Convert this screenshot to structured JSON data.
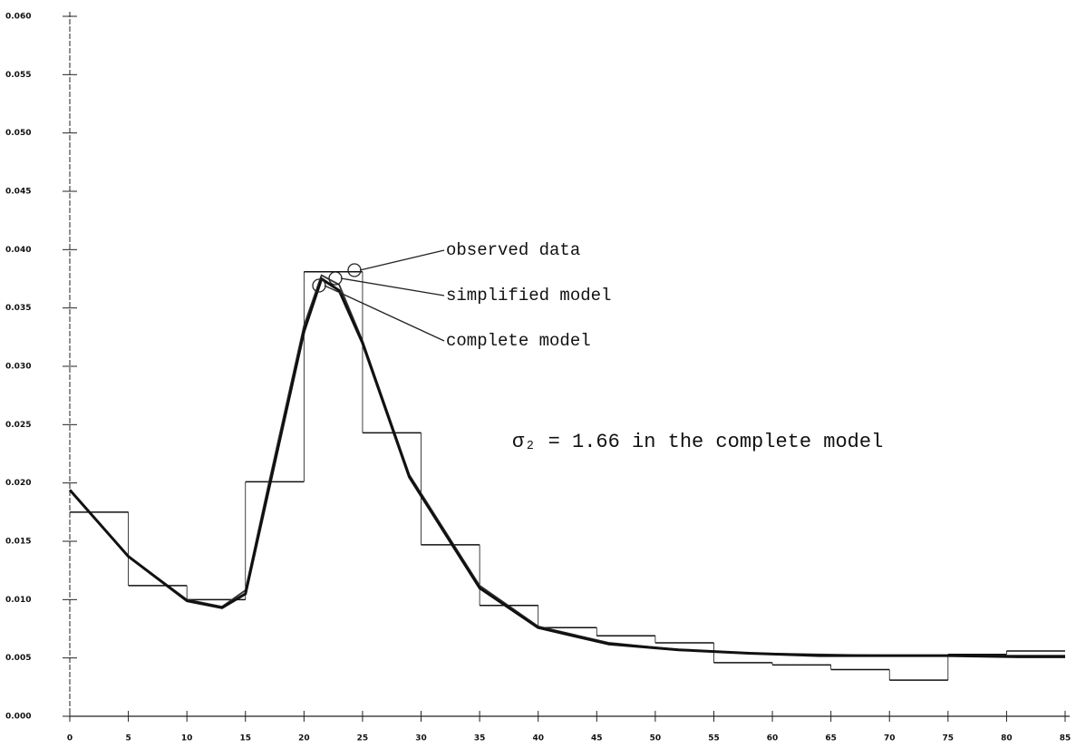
{
  "chart_data": {
    "type": "line",
    "x": [
      0,
      5,
      10,
      13,
      15,
      17,
      20,
      21.5,
      23,
      25,
      29,
      35,
      40,
      46,
      52,
      58,
      64,
      70,
      75,
      81,
      85
    ],
    "series": [
      {
        "name": "simplified model",
        "color": "#333333",
        "values": [
          0.0194,
          0.0137,
          0.01,
          0.0094,
          0.0108,
          0.02,
          0.0335,
          0.0378,
          0.037,
          0.0322,
          0.0207,
          0.0112,
          0.0077,
          0.0063,
          0.0057,
          0.0054,
          0.0053,
          0.0052,
          0.0052,
          0.0052,
          0.0052
        ]
      },
      {
        "name": "complete model",
        "color": "#111111",
        "values": [
          0.0194,
          0.0137,
          0.0099,
          0.0093,
          0.0105,
          0.0195,
          0.033,
          0.0375,
          0.0365,
          0.032,
          0.0205,
          0.011,
          0.0076,
          0.0062,
          0.0057,
          0.0054,
          0.0052,
          0.0052,
          0.0052,
          0.0051,
          0.0051
        ]
      }
    ],
    "histogram": {
      "name": "observed data",
      "color": "#111111",
      "bins": [
        0,
        5,
        10,
        15,
        20,
        25,
        30,
        35,
        40,
        45,
        50,
        55,
        60,
        65,
        70,
        75,
        80,
        85
      ],
      "values": [
        0.0175,
        0.0112,
        0.01,
        0.0201,
        0.0381,
        0.0243,
        0.0147,
        0.0095,
        0.0076,
        0.0069,
        0.0063,
        0.0046,
        0.0044,
        0.004,
        0.0031,
        0.0053,
        0.0056
      ]
    },
    "annotation": "σ₂ = 1.66 in the complete model",
    "xlim": [
      0,
      85
    ],
    "ylim": [
      0,
      0.06
    ],
    "xticks": [
      0,
      5,
      10,
      15,
      20,
      25,
      30,
      35,
      40,
      45,
      50,
      55,
      60,
      65,
      70,
      75,
      80,
      85
    ],
    "yticks": [
      {
        "value": 0,
        "label": "0.000"
      },
      {
        "value": 0.005,
        "label": "0.005"
      },
      {
        "value": 0.01,
        "label": "0.010"
      },
      {
        "value": 0.015,
        "label": "0.015"
      },
      {
        "value": 0.02,
        "label": "0.020"
      },
      {
        "value": 0.025,
        "label": "0.025"
      },
      {
        "value": 0.03,
        "label": "0.030"
      },
      {
        "value": 0.035,
        "label": "0.035"
      },
      {
        "value": 0.04,
        "label": "0.040"
      },
      {
        "value": 0.045,
        "label": "0.045"
      },
      {
        "value": 0.05,
        "label": "0.050"
      },
      {
        "value": 0.055,
        "label": "0.055"
      },
      {
        "value": 0.06,
        "label": "0.060"
      }
    ]
  }
}
